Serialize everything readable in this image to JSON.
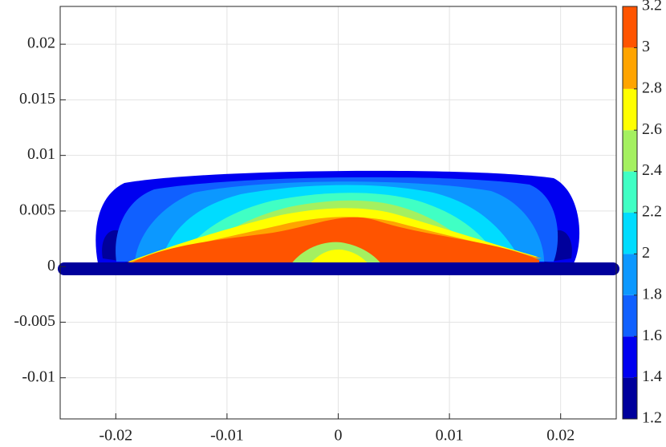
{
  "chart_data": {
    "type": "contour",
    "xlim": [
      -0.025,
      0.025
    ],
    "xticks": [
      -0.02,
      -0.01,
      0,
      0.01,
      0.02
    ],
    "ylim": [
      -0.0137,
      0.0234
    ],
    "yticks": [
      -0.01,
      -0.005,
      0,
      0.005,
      0.01,
      0.015,
      0.02
    ],
    "grid": true,
    "colorbar": {
      "lim": [
        1.2,
        3.2
      ],
      "ticks": [
        1.2,
        1.4,
        1.6,
        1.8,
        2,
        2.2,
        2.4,
        2.6,
        2.8,
        3,
        3.2
      ],
      "colors": [
        "#00009c",
        "#0000f0",
        "#1060ff",
        "#0c98ff",
        "#00dcff",
        "#40ffc4",
        "#a4f060",
        "#ffff00",
        "#ffa400",
        "#ff5400"
      ]
    }
  }
}
